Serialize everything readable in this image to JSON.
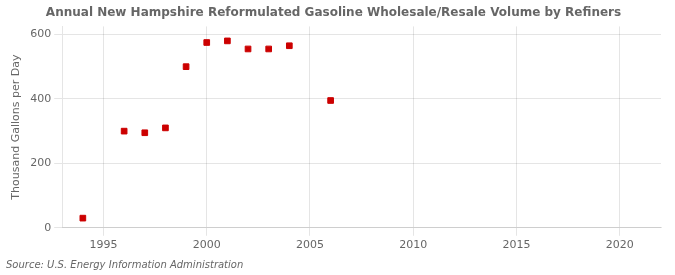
{
  "chart_data": {
    "type": "scatter",
    "title": "Annual New Hampshire Reformulated Gasoline Wholesale/Resale Volume by Refiners",
    "y_label": "Thousand Gallons per Day",
    "annotations": [
      "Source: U.S. Energy Information Administration"
    ],
    "x": [
      1994,
      1996,
      1997,
      1998,
      1999,
      2000,
      2001,
      2002,
      2003,
      2004,
      2006
    ],
    "values": [
      30,
      300,
      295,
      310,
      500,
      575,
      580,
      555,
      555,
      565,
      395
    ],
    "color": "#cc0000",
    "marker": "square",
    "xlim": [
      1993,
      2022
    ],
    "ylim": [
      0,
      625
    ],
    "xticks": [
      1995,
      2000,
      2005,
      2010,
      2015,
      2020
    ],
    "yticks": [
      0,
      200,
      400,
      600
    ],
    "grid": true
  }
}
